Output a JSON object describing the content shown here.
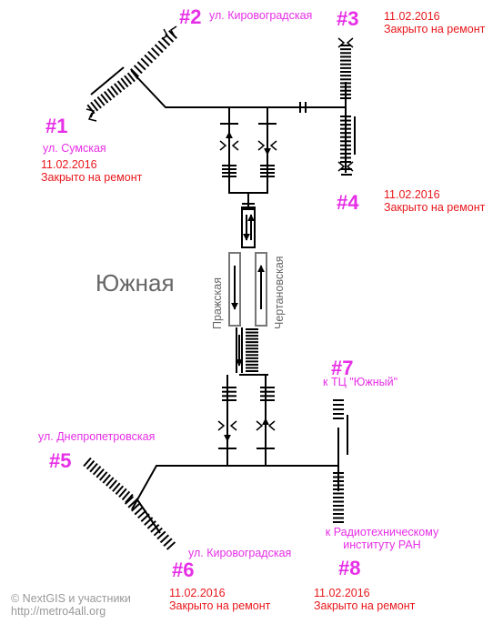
{
  "station": {
    "name": "Южная"
  },
  "platform_labels": {
    "left": "Пражская",
    "right": "Чертановская"
  },
  "exits": [
    {
      "number": "#1",
      "street": "ул. Сумская",
      "date": "11.02.2016",
      "status": "Закрыто на ремонт"
    },
    {
      "number": "#2",
      "street": "ул. Кировоградская"
    },
    {
      "number": "#3",
      "date": "11.02.2016",
      "status": "Закрыто на ремонт"
    },
    {
      "number": "#4",
      "date": "11.02.2016",
      "status": "Закрыто на ремонт"
    },
    {
      "number": "#5",
      "street": "ул. Днепропетровская"
    },
    {
      "number": "#6",
      "street": "ул. Кировоградская",
      "date": "11.02.2016",
      "status": "Закрыто на ремонт"
    },
    {
      "number": "#7",
      "street": "к ТЦ \"Южный\""
    },
    {
      "number": "#8",
      "street_line1": "к Радиотехническому",
      "street_line2": "институту РАН",
      "date": "11.02.2016",
      "status": "Закрыто на ремонт"
    }
  ],
  "credits": {
    "line1": "© NextGIS и участники",
    "line2": "http://metro4all.org"
  },
  "colors": {
    "exit_number": "#e62ee6",
    "closed": "#e8171c",
    "line": "#000000",
    "station_text": "#666666",
    "credit_text": "#999999"
  }
}
